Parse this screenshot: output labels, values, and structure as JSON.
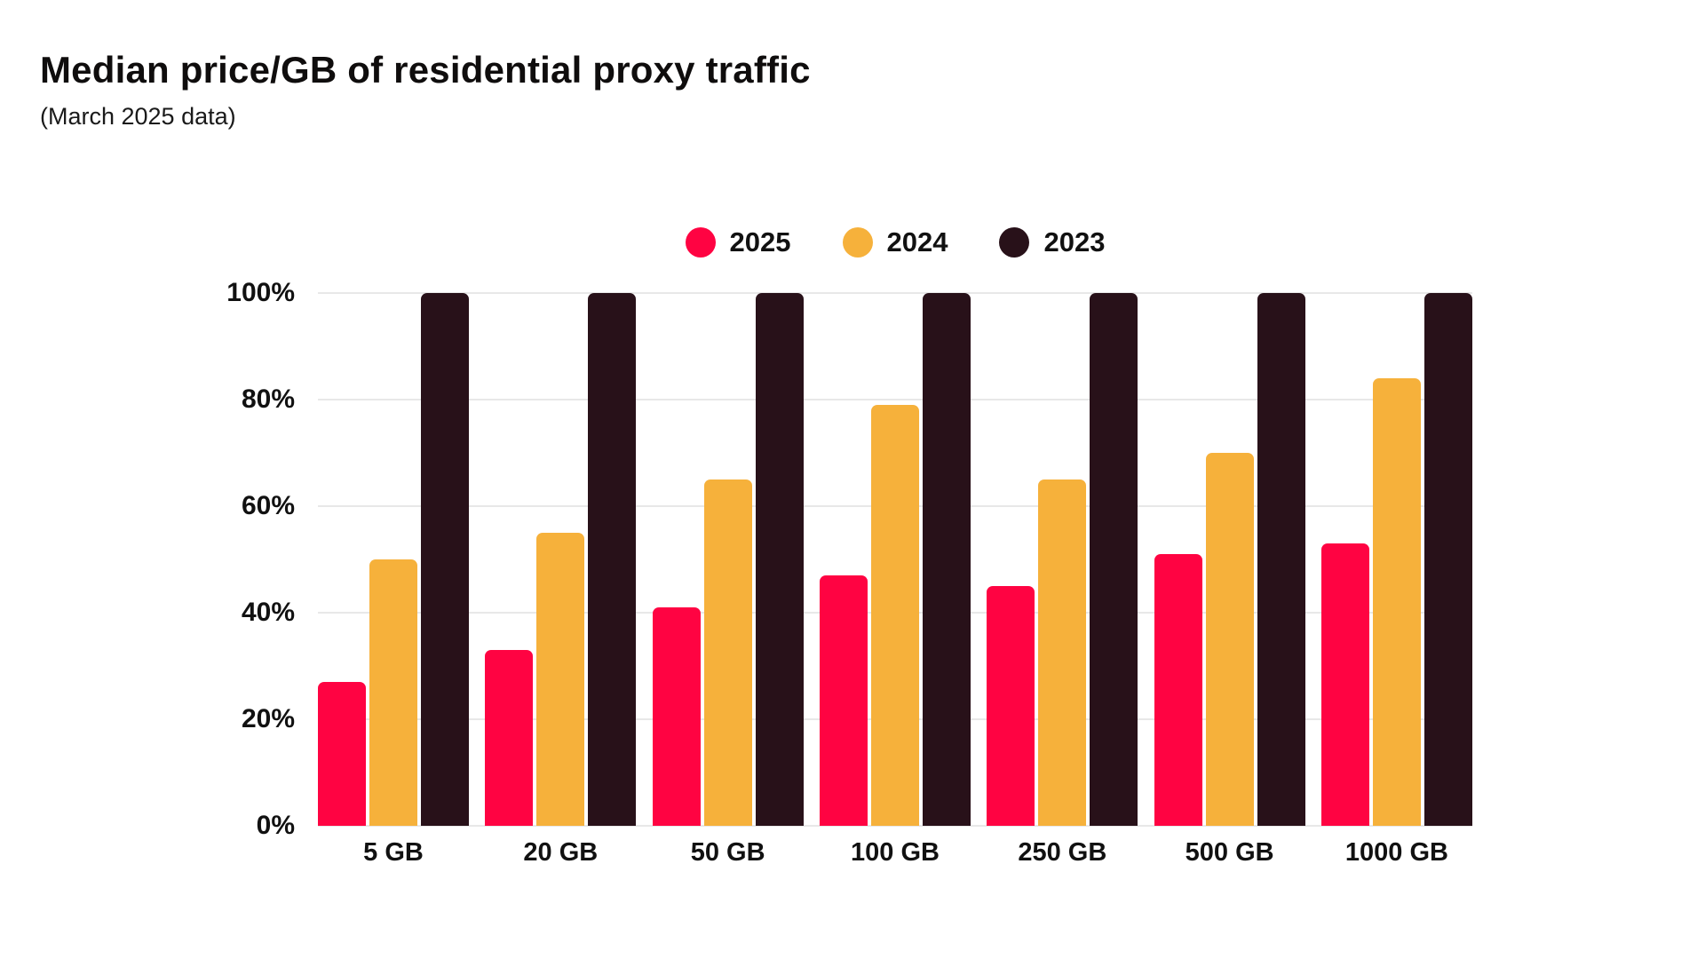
{
  "header": {
    "title": "Median price/GB of residential proxy traffic",
    "subtitle": "(March 2025 data)"
  },
  "legend": {
    "items": [
      {
        "label": "2025",
        "color": "#ff0342"
      },
      {
        "label": "2024",
        "color": "#f6b13b"
      },
      {
        "label": "2023",
        "color": "#281119"
      }
    ]
  },
  "chart_data": {
    "type": "bar",
    "title": "Median price/GB of residential proxy traffic",
    "subtitle": "(March 2025 data)",
    "categories": [
      "5 GB",
      "20 GB",
      "50 GB",
      "100 GB",
      "250 GB",
      "500 GB",
      "1000 GB"
    ],
    "series": [
      {
        "name": "2025",
        "color": "#ff0342",
        "values": [
          27,
          33,
          41,
          47,
          45,
          51,
          53
        ]
      },
      {
        "name": "2024",
        "color": "#f6b13b",
        "values": [
          50,
          55,
          65,
          79,
          65,
          70,
          84
        ]
      },
      {
        "name": "2023",
        "color": "#281119",
        "values": [
          100,
          100,
          100,
          100,
          100,
          100,
          100
        ]
      }
    ],
    "xlabel": "",
    "ylabel": "",
    "ylim": [
      0,
      100
    ],
    "y_ticks": [
      "100%",
      "80%",
      "60%",
      "40%",
      "20%",
      "0%"
    ],
    "grid": true,
    "legend_position": "top-center",
    "background": "#ffffff",
    "gridline_color": "#e8e8e8"
  }
}
